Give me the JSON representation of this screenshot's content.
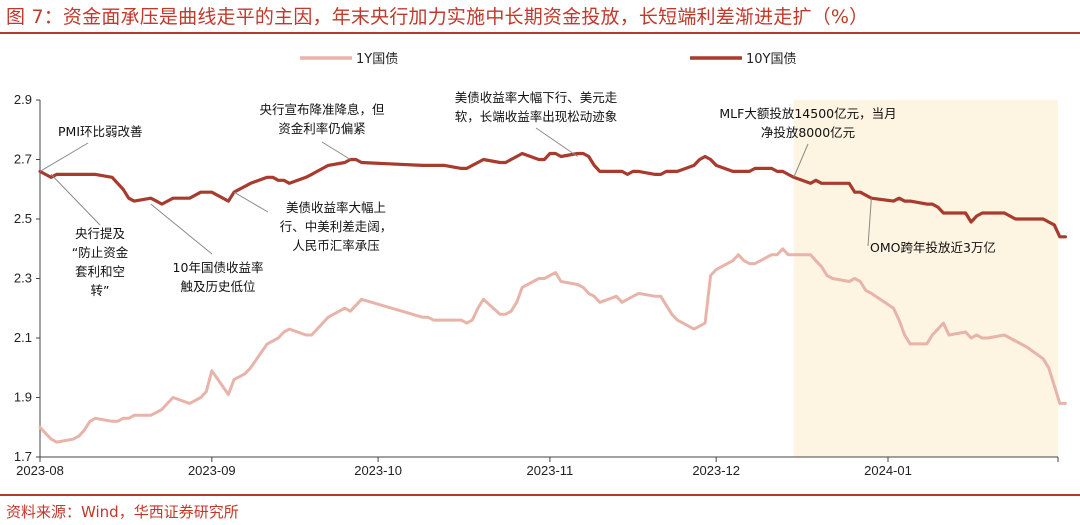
{
  "header": {
    "title": "图 7：资金面承压是曲线走平的主因，年末央行加力实施中长期资金投放，长短端利差渐进走扩（%）"
  },
  "footer": {
    "source": "资料来源：Wind，华西证券研究所"
  },
  "colors": {
    "y1": "#e8b4aa",
    "y10": "#a83a2e",
    "highlight": "#fdf4e1",
    "accent": "#c0392b"
  },
  "chart_data": {
    "type": "line",
    "title": "资金面承压是曲线走平的主因，年末央行加力实施中长期资金投放，长短端利差渐进走扩（%）",
    "xlabel": "",
    "ylabel": "",
    "x_range": [
      "2023-08-01",
      "2024-01-31"
    ],
    "ylim": [
      1.7,
      2.9
    ],
    "yticks": [
      "1.7",
      "1.9",
      "2.1",
      "2.3",
      "2.5",
      "2.7",
      "2.9"
    ],
    "xticks": [
      {
        "date": "2023-08-01",
        "label": "2023-08"
      },
      {
        "date": "2023-09-01",
        "label": "2023-09"
      },
      {
        "date": "2023-10-01",
        "label": "2023-10"
      },
      {
        "date": "2023-11-01",
        "label": "2023-11"
      },
      {
        "date": "2023-12-01",
        "label": "2023-12"
      },
      {
        "date": "2024-01-01",
        "label": "2024-01"
      }
    ],
    "grid": false,
    "legend": "top",
    "highlight_range": [
      "2023-12-15",
      "2024-01-31"
    ],
    "series": [
      {
        "name": "1Y国债",
        "points": [
          [
            "2023-08-01",
            1.8
          ],
          [
            "2023-08-02",
            1.78
          ],
          [
            "2023-08-03",
            1.76
          ],
          [
            "2023-08-04",
            1.75
          ],
          [
            "2023-08-07",
            1.76
          ],
          [
            "2023-08-08",
            1.77
          ],
          [
            "2023-08-09",
            1.79
          ],
          [
            "2023-08-10",
            1.82
          ],
          [
            "2023-08-11",
            1.83
          ],
          [
            "2023-08-14",
            1.82
          ],
          [
            "2023-08-15",
            1.82
          ],
          [
            "2023-08-16",
            1.83
          ],
          [
            "2023-08-17",
            1.83
          ],
          [
            "2023-08-18",
            1.84
          ],
          [
            "2023-08-21",
            1.84
          ],
          [
            "2023-08-22",
            1.85
          ],
          [
            "2023-08-23",
            1.86
          ],
          [
            "2023-08-24",
            1.88
          ],
          [
            "2023-08-25",
            1.9
          ],
          [
            "2023-08-28",
            1.88
          ],
          [
            "2023-08-29",
            1.89
          ],
          [
            "2023-08-30",
            1.9
          ],
          [
            "2023-08-31",
            1.92
          ],
          [
            "2023-09-01",
            1.99
          ],
          [
            "2023-09-04",
            1.91
          ],
          [
            "2023-09-05",
            1.96
          ],
          [
            "2023-09-06",
            1.97
          ],
          [
            "2023-09-07",
            1.98
          ],
          [
            "2023-09-08",
            2.0
          ],
          [
            "2023-09-11",
            2.08
          ],
          [
            "2023-09-12",
            2.09
          ],
          [
            "2023-09-13",
            2.1
          ],
          [
            "2023-09-14",
            2.12
          ],
          [
            "2023-09-15",
            2.13
          ],
          [
            "2023-09-18",
            2.11
          ],
          [
            "2023-09-19",
            2.11
          ],
          [
            "2023-09-20",
            2.13
          ],
          [
            "2023-09-21",
            2.15
          ],
          [
            "2023-09-22",
            2.17
          ],
          [
            "2023-09-25",
            2.2
          ],
          [
            "2023-09-26",
            2.19
          ],
          [
            "2023-09-27",
            2.21
          ],
          [
            "2023-09-28",
            2.23
          ],
          [
            "2023-10-09",
            2.17
          ],
          [
            "2023-10-10",
            2.17
          ],
          [
            "2023-10-11",
            2.16
          ],
          [
            "2023-10-12",
            2.16
          ],
          [
            "2023-10-13",
            2.16
          ],
          [
            "2023-10-16",
            2.16
          ],
          [
            "2023-10-17",
            2.15
          ],
          [
            "2023-10-18",
            2.16
          ],
          [
            "2023-10-19",
            2.2
          ],
          [
            "2023-10-20",
            2.23
          ],
          [
            "2023-10-23",
            2.18
          ],
          [
            "2023-10-24",
            2.18
          ],
          [
            "2023-10-25",
            2.19
          ],
          [
            "2023-10-26",
            2.22
          ],
          [
            "2023-10-27",
            2.27
          ],
          [
            "2023-10-30",
            2.3
          ],
          [
            "2023-10-31",
            2.3
          ],
          [
            "2023-11-01",
            2.31
          ],
          [
            "2023-11-02",
            2.32
          ],
          [
            "2023-11-03",
            2.29
          ],
          [
            "2023-11-06",
            2.28
          ],
          [
            "2023-11-07",
            2.27
          ],
          [
            "2023-11-08",
            2.25
          ],
          [
            "2023-11-09",
            2.24
          ],
          [
            "2023-11-10",
            2.22
          ],
          [
            "2023-11-13",
            2.24
          ],
          [
            "2023-11-14",
            2.22
          ],
          [
            "2023-11-15",
            2.23
          ],
          [
            "2023-11-16",
            2.24
          ],
          [
            "2023-11-17",
            2.25
          ],
          [
            "2023-11-20",
            2.24
          ],
          [
            "2023-11-21",
            2.24
          ],
          [
            "2023-11-22",
            2.21
          ],
          [
            "2023-11-23",
            2.18
          ],
          [
            "2023-11-24",
            2.16
          ],
          [
            "2023-11-27",
            2.13
          ],
          [
            "2023-11-28",
            2.14
          ],
          [
            "2023-11-29",
            2.15
          ],
          [
            "2023-11-30",
            2.31
          ],
          [
            "2023-12-01",
            2.33
          ],
          [
            "2023-12-04",
            2.36
          ],
          [
            "2023-12-05",
            2.38
          ],
          [
            "2023-12-06",
            2.36
          ],
          [
            "2023-12-07",
            2.35
          ],
          [
            "2023-12-08",
            2.35
          ],
          [
            "2023-12-11",
            2.38
          ],
          [
            "2023-12-12",
            2.38
          ],
          [
            "2023-12-13",
            2.4
          ],
          [
            "2023-12-14",
            2.38
          ],
          [
            "2023-12-15",
            2.38
          ],
          [
            "2023-12-18",
            2.38
          ],
          [
            "2023-12-19",
            2.36
          ],
          [
            "2023-12-20",
            2.34
          ],
          [
            "2023-12-21",
            2.31
          ],
          [
            "2023-12-22",
            2.3
          ],
          [
            "2023-12-25",
            2.29
          ],
          [
            "2023-12-26",
            2.3
          ],
          [
            "2023-12-27",
            2.29
          ],
          [
            "2023-12-28",
            2.26
          ],
          [
            "2023-12-29",
            2.25
          ],
          [
            "2024-01-02",
            2.2
          ],
          [
            "2024-01-03",
            2.16
          ],
          [
            "2024-01-04",
            2.11
          ],
          [
            "2024-01-05",
            2.08
          ],
          [
            "2024-01-08",
            2.08
          ],
          [
            "2024-01-09",
            2.11
          ],
          [
            "2024-01-10",
            2.13
          ],
          [
            "2024-01-11",
            2.15
          ],
          [
            "2024-01-12",
            2.11
          ],
          [
            "2024-01-15",
            2.12
          ],
          [
            "2024-01-16",
            2.1
          ],
          [
            "2024-01-17",
            2.11
          ],
          [
            "2024-01-18",
            2.1
          ],
          [
            "2024-01-19",
            2.1
          ],
          [
            "2024-01-22",
            2.11
          ],
          [
            "2024-01-23",
            2.1
          ],
          [
            "2024-01-24",
            2.09
          ],
          [
            "2024-01-25",
            2.08
          ],
          [
            "2024-01-26",
            2.07
          ],
          [
            "2024-01-29",
            2.03
          ],
          [
            "2024-01-30",
            2.0
          ],
          [
            "2024-01-31",
            1.94
          ],
          [
            "2024-02-01",
            1.88
          ],
          [
            "2024-02-02",
            1.88
          ]
        ]
      },
      {
        "name": "10Y国债",
        "points": [
          [
            "2023-08-01",
            2.66
          ],
          [
            "2023-08-02",
            2.65
          ],
          [
            "2023-08-03",
            2.64
          ],
          [
            "2023-08-04",
            2.65
          ],
          [
            "2023-08-07",
            2.65
          ],
          [
            "2023-08-08",
            2.65
          ],
          [
            "2023-08-09",
            2.65
          ],
          [
            "2023-08-10",
            2.65
          ],
          [
            "2023-08-11",
            2.65
          ],
          [
            "2023-08-14",
            2.64
          ],
          [
            "2023-08-15",
            2.62
          ],
          [
            "2023-08-16",
            2.6
          ],
          [
            "2023-08-17",
            2.57
          ],
          [
            "2023-08-18",
            2.56
          ],
          [
            "2023-08-21",
            2.57
          ],
          [
            "2023-08-22",
            2.56
          ],
          [
            "2023-08-23",
            2.55
          ],
          [
            "2023-08-24",
            2.56
          ],
          [
            "2023-08-25",
            2.57
          ],
          [
            "2023-08-28",
            2.57
          ],
          [
            "2023-08-29",
            2.58
          ],
          [
            "2023-08-30",
            2.59
          ],
          [
            "2023-08-31",
            2.59
          ],
          [
            "2023-09-01",
            2.59
          ],
          [
            "2023-09-04",
            2.56
          ],
          [
            "2023-09-05",
            2.59
          ],
          [
            "2023-09-06",
            2.6
          ],
          [
            "2023-09-07",
            2.61
          ],
          [
            "2023-09-08",
            2.62
          ],
          [
            "2023-09-11",
            2.64
          ],
          [
            "2023-09-12",
            2.64
          ],
          [
            "2023-09-13",
            2.63
          ],
          [
            "2023-09-14",
            2.63
          ],
          [
            "2023-09-15",
            2.62
          ],
          [
            "2023-09-18",
            2.64
          ],
          [
            "2023-09-19",
            2.65
          ],
          [
            "2023-09-20",
            2.66
          ],
          [
            "2023-09-21",
            2.67
          ],
          [
            "2023-09-22",
            2.68
          ],
          [
            "2023-09-25",
            2.69
          ],
          [
            "2023-09-26",
            2.7
          ],
          [
            "2023-09-27",
            2.7
          ],
          [
            "2023-09-28",
            2.69
          ],
          [
            "2023-10-09",
            2.68
          ],
          [
            "2023-10-10",
            2.68
          ],
          [
            "2023-10-11",
            2.68
          ],
          [
            "2023-10-12",
            2.68
          ],
          [
            "2023-10-13",
            2.68
          ],
          [
            "2023-10-16",
            2.67
          ],
          [
            "2023-10-17",
            2.67
          ],
          [
            "2023-10-18",
            2.68
          ],
          [
            "2023-10-19",
            2.69
          ],
          [
            "2023-10-20",
            2.7
          ],
          [
            "2023-10-23",
            2.69
          ],
          [
            "2023-10-24",
            2.69
          ],
          [
            "2023-10-25",
            2.7
          ],
          [
            "2023-10-26",
            2.71
          ],
          [
            "2023-10-27",
            2.72
          ],
          [
            "2023-10-30",
            2.7
          ],
          [
            "2023-10-31",
            2.7
          ],
          [
            "2023-11-01",
            2.72
          ],
          [
            "2023-11-02",
            2.72
          ],
          [
            "2023-11-03",
            2.71
          ],
          [
            "2023-11-06",
            2.72
          ],
          [
            "2023-11-07",
            2.72
          ],
          [
            "2023-11-08",
            2.71
          ],
          [
            "2023-11-09",
            2.68
          ],
          [
            "2023-11-10",
            2.66
          ],
          [
            "2023-11-13",
            2.66
          ],
          [
            "2023-11-14",
            2.66
          ],
          [
            "2023-11-15",
            2.65
          ],
          [
            "2023-11-16",
            2.66
          ],
          [
            "2023-11-17",
            2.66
          ],
          [
            "2023-11-20",
            2.65
          ],
          [
            "2023-11-21",
            2.65
          ],
          [
            "2023-11-22",
            2.66
          ],
          [
            "2023-11-23",
            2.66
          ],
          [
            "2023-11-24",
            2.66
          ],
          [
            "2023-11-27",
            2.68
          ],
          [
            "2023-11-28",
            2.7
          ],
          [
            "2023-11-29",
            2.71
          ],
          [
            "2023-11-30",
            2.7
          ],
          [
            "2023-12-01",
            2.68
          ],
          [
            "2023-12-04",
            2.66
          ],
          [
            "2023-12-05",
            2.66
          ],
          [
            "2023-12-06",
            2.66
          ],
          [
            "2023-12-07",
            2.66
          ],
          [
            "2023-12-08",
            2.67
          ],
          [
            "2023-12-11",
            2.67
          ],
          [
            "2023-12-12",
            2.66
          ],
          [
            "2023-12-13",
            2.66
          ],
          [
            "2023-12-14",
            2.65
          ],
          [
            "2023-12-15",
            2.64
          ],
          [
            "2023-12-18",
            2.62
          ],
          [
            "2023-12-19",
            2.63
          ],
          [
            "2023-12-20",
            2.62
          ],
          [
            "2023-12-21",
            2.62
          ],
          [
            "2023-12-22",
            2.62
          ],
          [
            "2023-12-25",
            2.62
          ],
          [
            "2023-12-26",
            2.59
          ],
          [
            "2023-12-27",
            2.59
          ],
          [
            "2023-12-28",
            2.58
          ],
          [
            "2023-12-29",
            2.57
          ],
          [
            "2024-01-02",
            2.56
          ],
          [
            "2024-01-03",
            2.57
          ],
          [
            "2024-01-04",
            2.56
          ],
          [
            "2024-01-05",
            2.56
          ],
          [
            "2024-01-08",
            2.55
          ],
          [
            "2024-01-09",
            2.55
          ],
          [
            "2024-01-10",
            2.54
          ],
          [
            "2024-01-11",
            2.52
          ],
          [
            "2024-01-12",
            2.52
          ],
          [
            "2024-01-15",
            2.52
          ],
          [
            "2024-01-16",
            2.49
          ],
          [
            "2024-01-17",
            2.51
          ],
          [
            "2024-01-18",
            2.52
          ],
          [
            "2024-01-19",
            2.52
          ],
          [
            "2024-01-22",
            2.52
          ],
          [
            "2024-01-23",
            2.51
          ],
          [
            "2024-01-24",
            2.5
          ],
          [
            "2024-01-25",
            2.5
          ],
          [
            "2024-01-26",
            2.5
          ],
          [
            "2024-01-29",
            2.5
          ],
          [
            "2024-01-30",
            2.49
          ],
          [
            "2024-01-31",
            2.48
          ],
          [
            "2024-02-01",
            2.44
          ],
          [
            "2024-02-02",
            2.44
          ]
        ]
      }
    ],
    "annotations": [
      {
        "id": "pmi",
        "lines": [
          "PMI环比弱改善"
        ],
        "date": "2023-08-01",
        "value": 2.66
      },
      {
        "id": "warn",
        "lines": [
          "央行提及",
          "“防止资金",
          "套利和空",
          "转”"
        ],
        "date": "2023-08-03",
        "value": 2.65
      },
      {
        "id": "low10",
        "lines": [
          "10年国债收益率",
          "触及历史低位"
        ],
        "date": "2023-08-21",
        "value": 2.55
      },
      {
        "id": "cut",
        "lines": [
          "央行宣布降准降息，但",
          "资金利率仍偏紧"
        ],
        "date": "2023-09-26",
        "value": 2.7
      },
      {
        "id": "usrise",
        "lines": [
          "美债收益率大幅上",
          "行、中美利差走阔，",
          "人民币汇率承压"
        ],
        "date": "2023-09-05",
        "value": 2.59
      },
      {
        "id": "usfall",
        "lines": [
          "美债收益率大幅下行、美元走",
          "软，长端收益率出现松动迹象"
        ],
        "date": "2023-11-06",
        "value": 2.71
      },
      {
        "id": "mlf",
        "lines": [
          "MLF大额投放14500亿元，当月",
          "净投放8000亿元"
        ],
        "date": "2023-12-15",
        "value": 2.64
      },
      {
        "id": "omo",
        "lines": [
          "OMO跨年投放近3万亿"
        ],
        "date": "2023-12-29",
        "value": 2.57
      }
    ]
  }
}
